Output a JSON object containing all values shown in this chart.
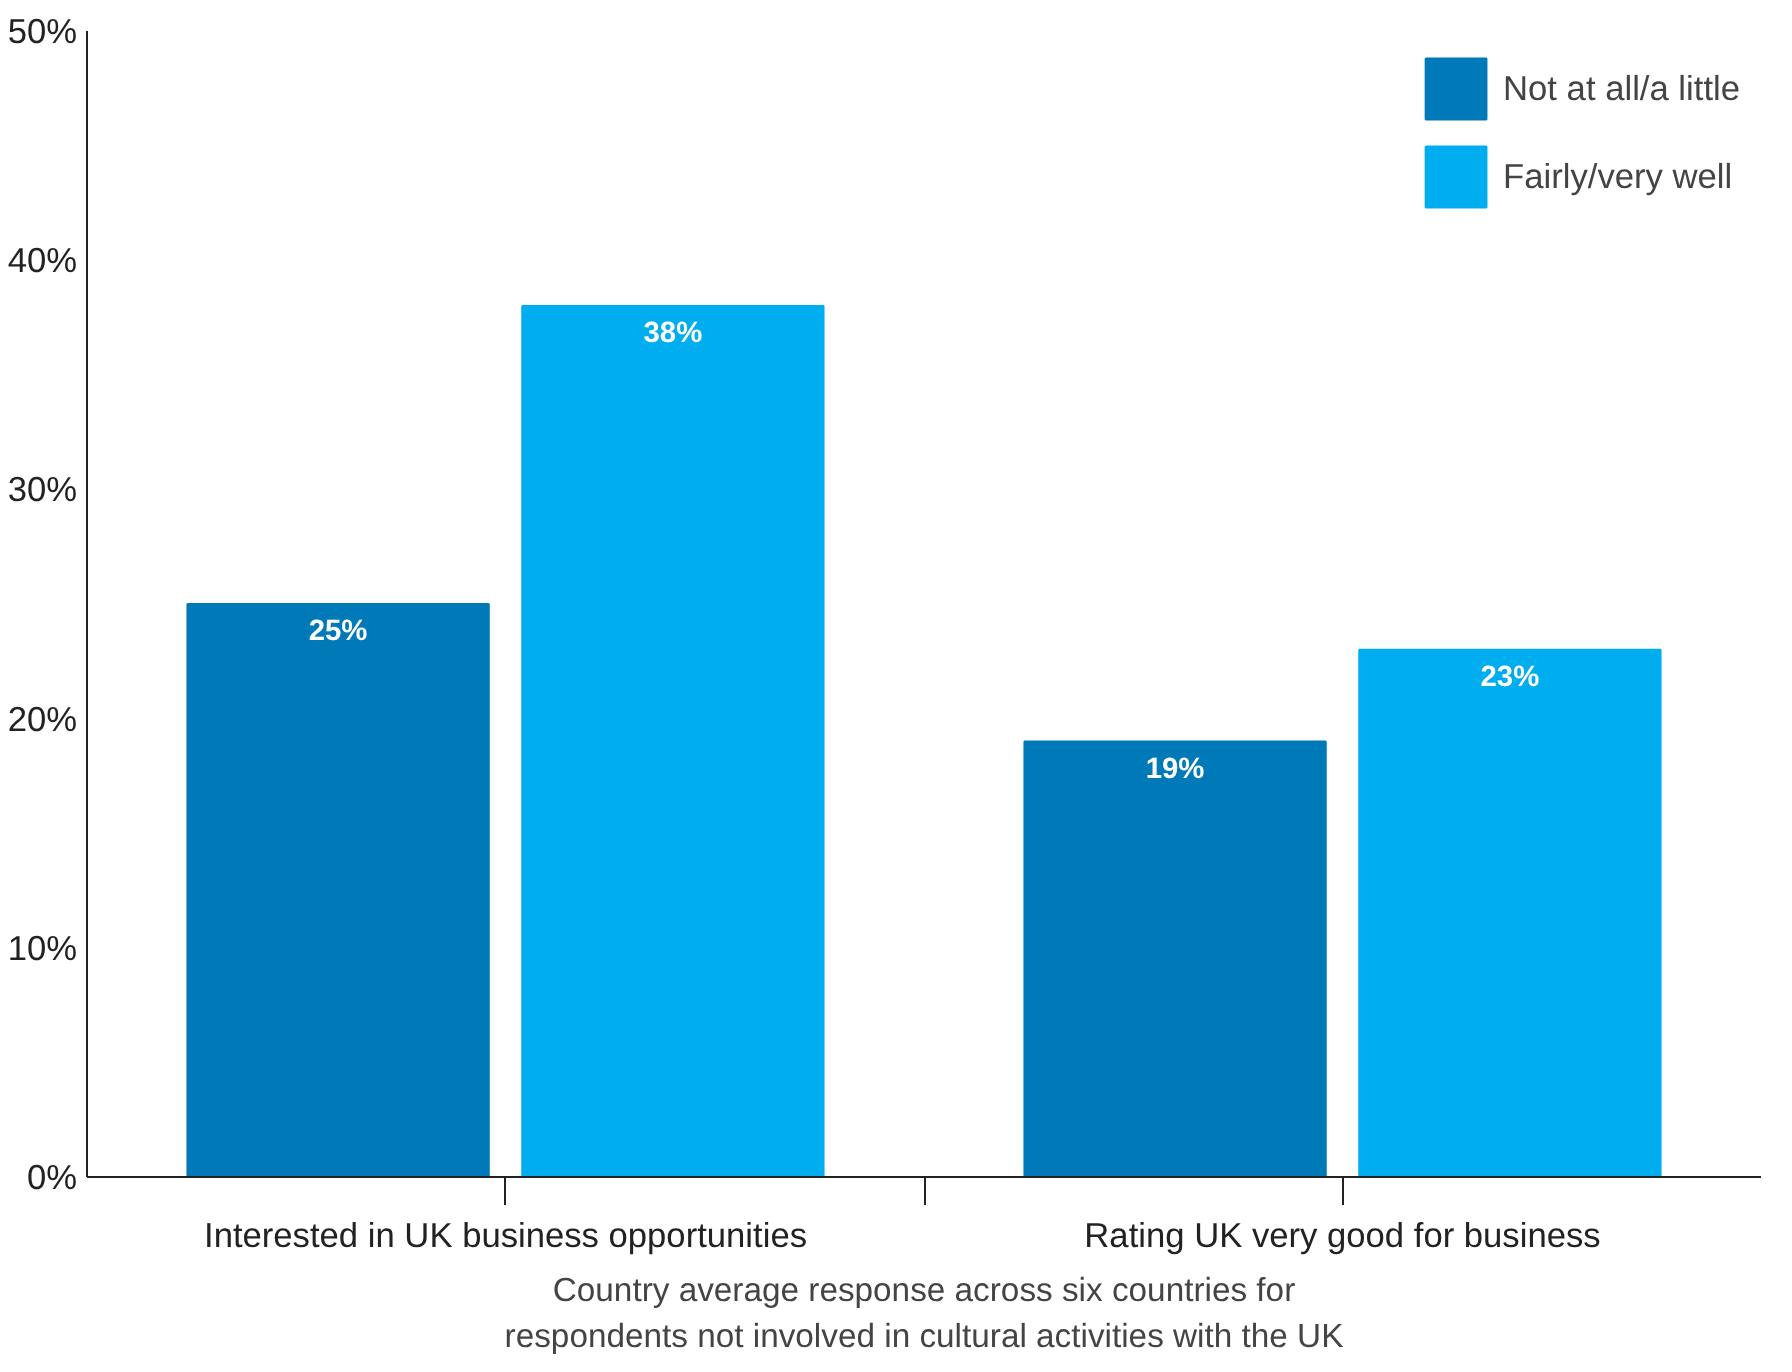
{
  "chart_data": {
    "type": "bar",
    "categories": [
      "Interested in UK business opportunities",
      "Rating UK very good for business"
    ],
    "series": [
      {
        "name": "Not at all/a little",
        "color": "#0079b8",
        "values": [
          25,
          19
        ],
        "value_labels": [
          "25%",
          "19%"
        ]
      },
      {
        "name": "Fairly/very well",
        "color": "#00adef",
        "values": [
          38,
          23
        ],
        "value_labels": [
          "38%",
          "23%"
        ]
      }
    ],
    "xlabel": "Country average response across six countries for\nrespondents not involved in cultural activities with the UK",
    "ylim": [
      0,
      50
    ],
    "yticks": [
      {
        "value": 0,
        "label": "0%"
      },
      {
        "value": 10,
        "label": "10%"
      },
      {
        "value": 20,
        "label": "20%"
      },
      {
        "value": 30,
        "label": "30%"
      },
      {
        "value": 40,
        "label": "40%"
      },
      {
        "value": 50,
        "label": "50%"
      }
    ],
    "legend": "top right",
    "grid": false
  }
}
